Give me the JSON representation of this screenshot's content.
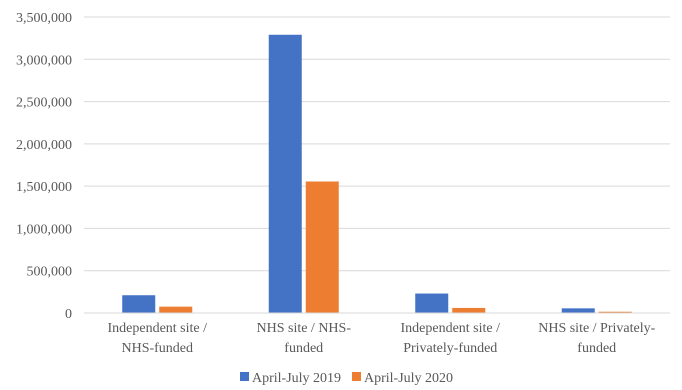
{
  "chart_data": {
    "type": "bar",
    "title": "",
    "xlabel": "",
    "ylabel": "",
    "ylim": [
      0,
      3500000
    ],
    "ytick_step": 500000,
    "ytick_labels": [
      "0",
      "500,000",
      "1,000,000",
      "1,500,000",
      "2,000,000",
      "2,500,000",
      "3,000,000",
      "3,500,000"
    ],
    "grid": true,
    "legend_position": "bottom",
    "categories": [
      [
        "Independent site /",
        "NHS-funded"
      ],
      [
        "NHS site / NHS-",
        "funded"
      ],
      [
        "Independent site /",
        "Privately-funded"
      ],
      [
        "NHS site / Privately-",
        "funded"
      ]
    ],
    "series": [
      {
        "name": "April-July 2019",
        "color": "#4472C4",
        "values": [
          210000,
          3290000,
          230000,
          55000
        ]
      },
      {
        "name": "April-July 2020",
        "color": "#ED7D31",
        "values": [
          75000,
          1555000,
          60000,
          15000
        ]
      }
    ]
  }
}
